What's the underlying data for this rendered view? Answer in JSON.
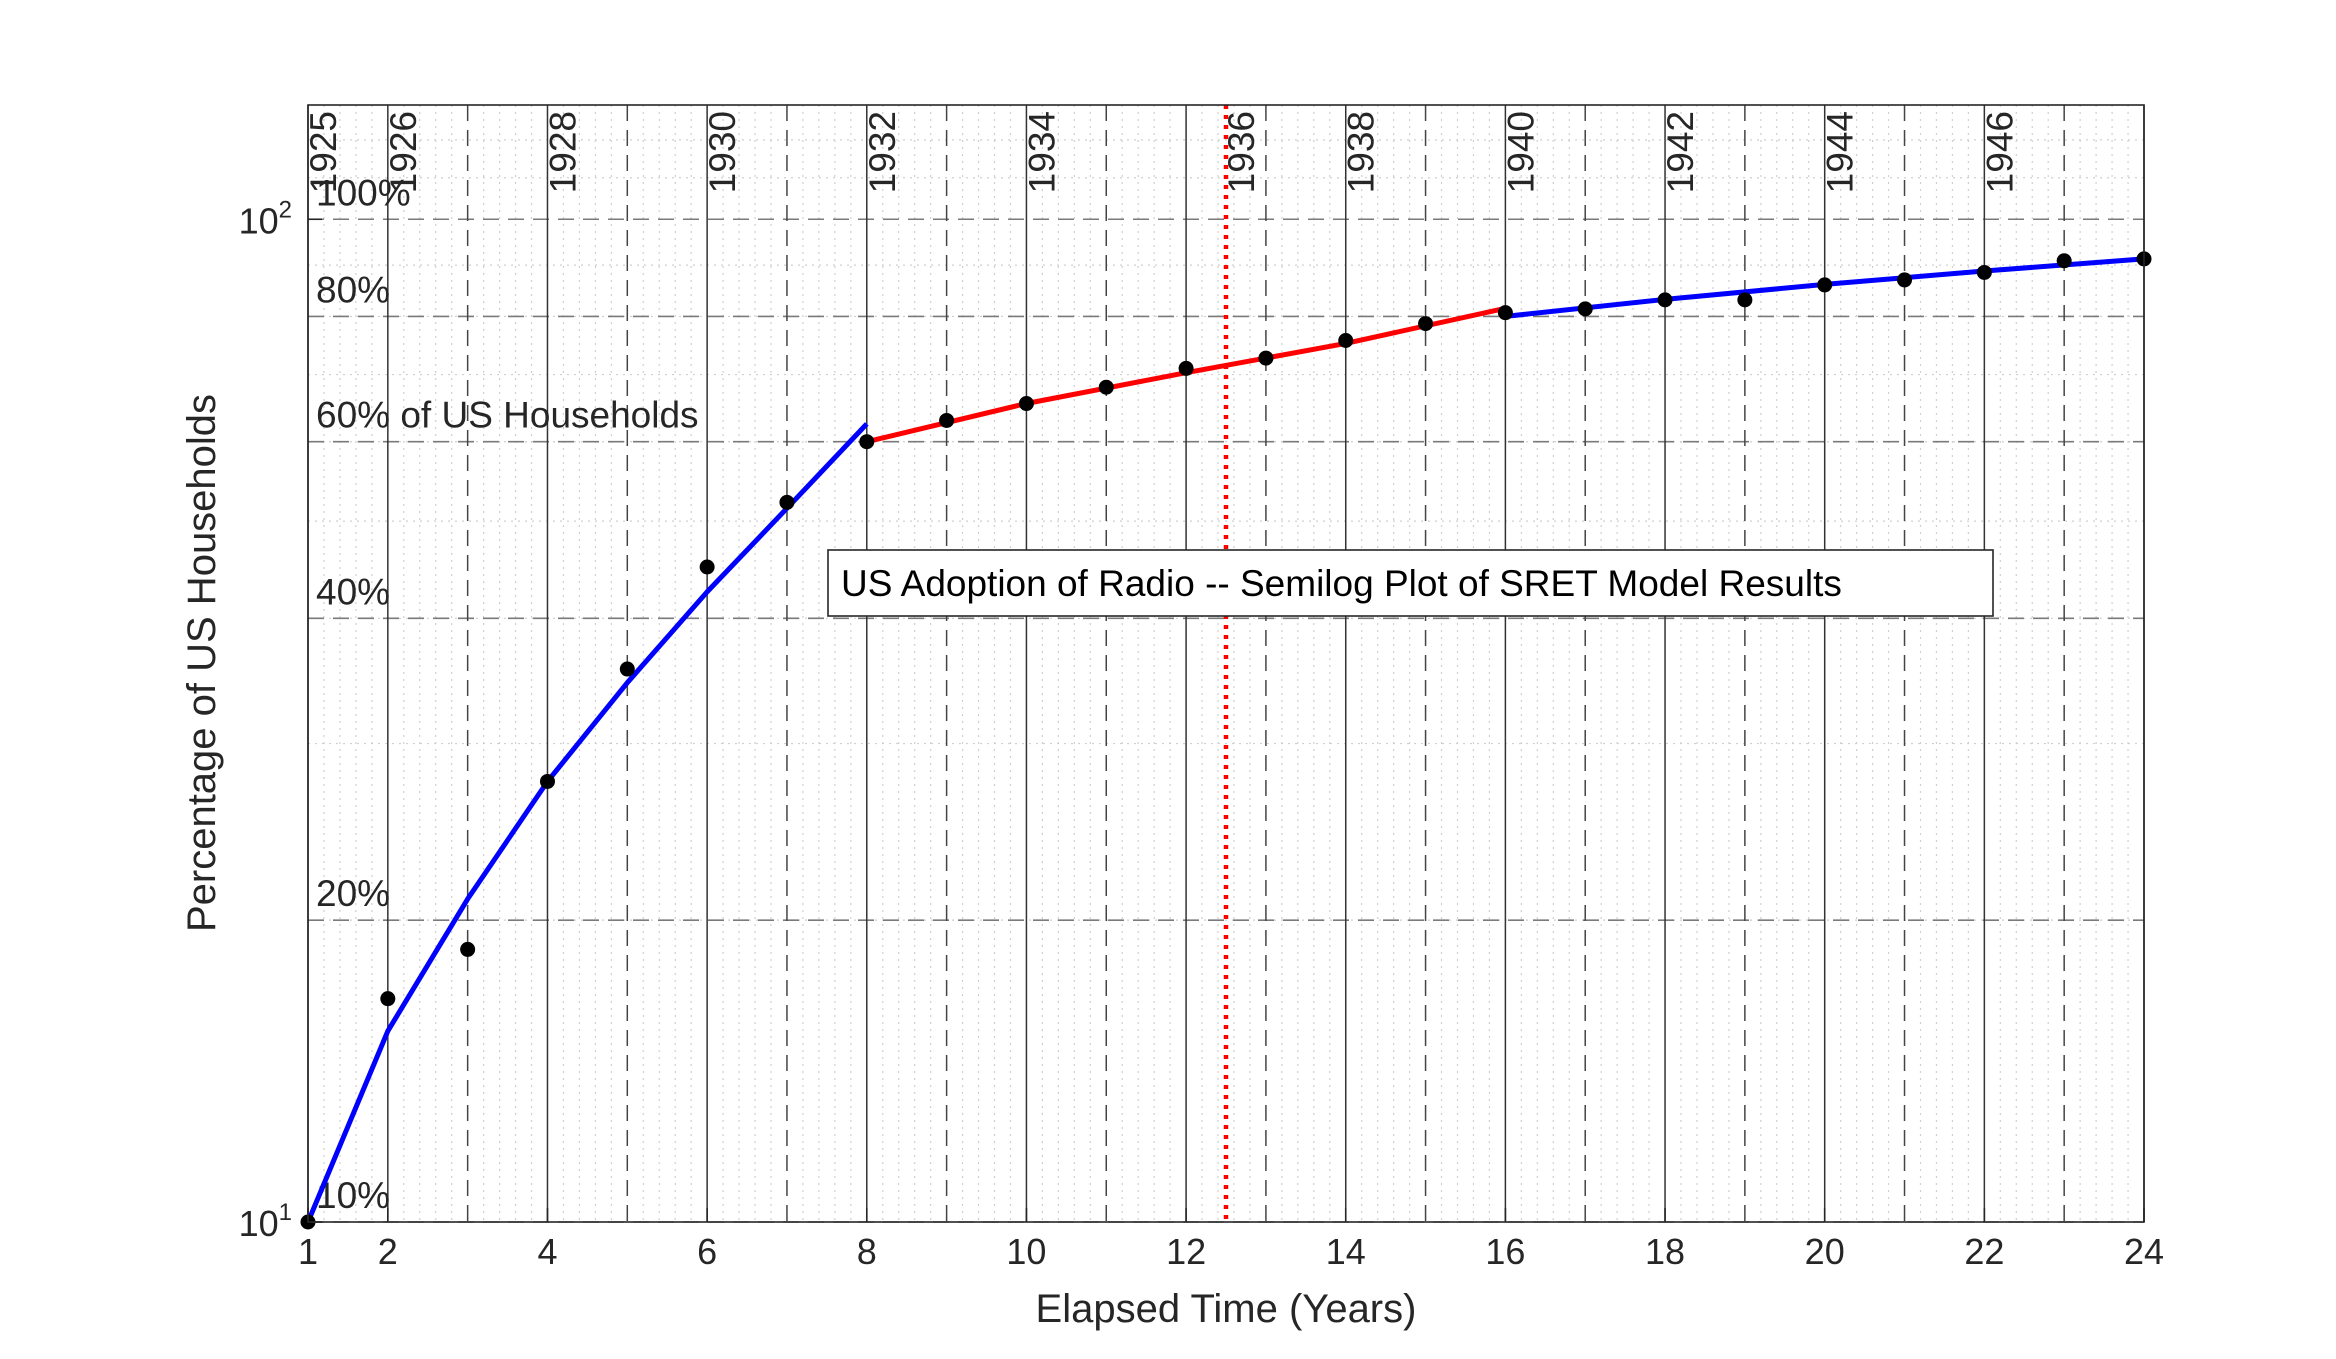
{
  "chart_data": {
    "type": "line",
    "title": "US Adoption of Radio -- Semilog Plot of SRET Model Results",
    "xlabel": "Elapsed Time (Years)",
    "ylabel": "Percentage of US Households",
    "xlim": [
      1,
      24
    ],
    "ylim": [
      10,
      130
    ],
    "yscale": "log",
    "grid": true,
    "x_ticks": [
      1,
      2,
      4,
      6,
      8,
      10,
      12,
      14,
      16,
      18,
      20,
      22,
      24
    ],
    "y_ticks": [
      {
        "value": 10,
        "base": "10",
        "exp": "1"
      },
      {
        "value": 100,
        "base": "10",
        "exp": "2"
      }
    ],
    "percent_labels": [
      {
        "value": 100,
        "text": "100%"
      },
      {
        "value": 80,
        "text": "80%"
      },
      {
        "value": 60,
        "text": "60% of US Households"
      },
      {
        "value": 40,
        "text": "40%"
      },
      {
        "value": 20,
        "text": "20%"
      },
      {
        "value": 10,
        "text": "10%"
      }
    ],
    "year_labels": [
      {
        "x": 1,
        "text": "1925"
      },
      {
        "x": 2,
        "text": "1926"
      },
      {
        "x": 4,
        "text": "1928"
      },
      {
        "x": 6,
        "text": "1930"
      },
      {
        "x": 8,
        "text": "1932"
      },
      {
        "x": 10,
        "text": "1934"
      },
      {
        "x": 12.5,
        "text": "1936"
      },
      {
        "x": 14,
        "text": "1938"
      },
      {
        "x": 16,
        "text": "1940"
      },
      {
        "x": 18,
        "text": "1942"
      },
      {
        "x": 20,
        "text": "1944"
      },
      {
        "x": 22,
        "text": "1946"
      }
    ],
    "solid_year_lines": [
      1,
      2,
      4,
      6,
      8,
      10,
      12,
      14,
      16,
      18,
      20,
      22,
      24
    ],
    "dashed_year_lines": [
      3,
      5,
      7,
      9,
      11,
      13,
      15,
      17,
      19,
      21,
      23
    ],
    "dashed_pct_lines": [
      10,
      20,
      40,
      60,
      80,
      100
    ],
    "marker_line": {
      "x": 12.5,
      "color": "#ff0000",
      "style": "dotted"
    },
    "series": [
      {
        "kind": "points",
        "color": "#000000",
        "x": [
          1,
          2,
          3,
          4,
          5,
          6,
          7,
          8,
          9,
          10,
          11,
          12,
          13,
          14,
          15,
          16,
          17,
          18,
          19,
          20,
          21,
          22,
          23,
          24
        ],
        "y": [
          10.0,
          16.7,
          18.7,
          27.5,
          35.6,
          45.0,
          52.2,
          60.0,
          63.0,
          65.5,
          68.0,
          71.0,
          72.7,
          75.7,
          78.7,
          80.7,
          81.4,
          83.1,
          83.1,
          86.0,
          87.0,
          88.5,
          90.9,
          91.3
        ]
      },
      {
        "kind": "line",
        "color": "#0000ff",
        "x": [
          1,
          2,
          3,
          4,
          5,
          6,
          7,
          8
        ],
        "y": [
          10.0,
          15.5,
          21.0,
          27.5,
          34.5,
          42.5,
          51.5,
          62.5
        ]
      },
      {
        "kind": "line",
        "color": "#ff0000",
        "x": [
          8,
          10,
          12,
          14,
          16
        ],
        "y": [
          60.0,
          65.5,
          70.3,
          75.2,
          81.5
        ]
      },
      {
        "kind": "line",
        "color": "#0000ff",
        "x": [
          16,
          18,
          20,
          22,
          24
        ],
        "y": [
          80.0,
          83.2,
          86.1,
          88.8,
          91.3
        ]
      }
    ]
  }
}
